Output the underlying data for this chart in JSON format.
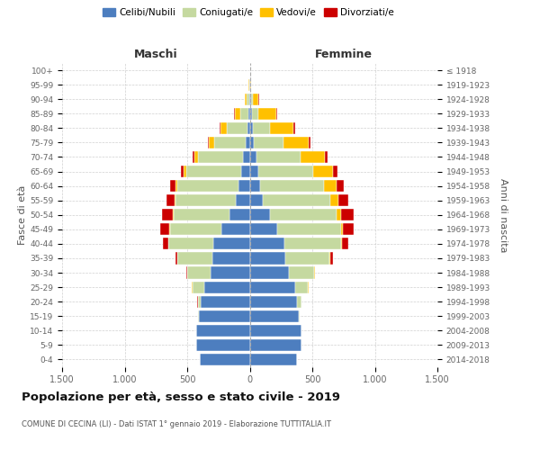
{
  "age_groups": [
    "100+",
    "95-99",
    "90-94",
    "85-89",
    "80-84",
    "75-79",
    "70-74",
    "65-69",
    "60-64",
    "55-59",
    "50-54",
    "45-49",
    "40-44",
    "35-39",
    "30-34",
    "25-29",
    "20-24",
    "15-19",
    "10-14",
    "5-9",
    "0-4"
  ],
  "birth_years": [
    "≤ 1918",
    "1919-1923",
    "1924-1928",
    "1929-1933",
    "1934-1938",
    "1939-1943",
    "1944-1948",
    "1949-1953",
    "1954-1958",
    "1959-1963",
    "1964-1968",
    "1969-1973",
    "1974-1978",
    "1979-1983",
    "1984-1988",
    "1989-1993",
    "1994-1998",
    "1999-2003",
    "2004-2008",
    "2009-2013",
    "2014-2018"
  ],
  "males": {
    "celibi": [
      0,
      2,
      4,
      10,
      20,
      35,
      55,
      70,
      90,
      110,
      160,
      230,
      290,
      300,
      310,
      360,
      390,
      410,
      430,
      430,
      400
    ],
    "coniugati": [
      0,
      3,
      20,
      65,
      160,
      250,
      360,
      440,
      490,
      480,
      450,
      410,
      360,
      280,
      190,
      100,
      25,
      5,
      0,
      0,
      0
    ],
    "vedovi": [
      0,
      3,
      15,
      45,
      55,
      45,
      28,
      18,
      12,
      8,
      5,
      4,
      3,
      2,
      2,
      2,
      0,
      0,
      0,
      0,
      0
    ],
    "divorziati": [
      0,
      0,
      0,
      3,
      5,
      8,
      15,
      20,
      45,
      70,
      85,
      75,
      38,
      12,
      5,
      4,
      3,
      0,
      0,
      0,
      0
    ]
  },
  "females": {
    "nubili": [
      0,
      3,
      8,
      15,
      22,
      32,
      55,
      68,
      80,
      105,
      160,
      220,
      275,
      285,
      310,
      360,
      375,
      395,
      415,
      415,
      375
    ],
    "coniugate": [
      0,
      3,
      15,
      55,
      140,
      240,
      355,
      440,
      510,
      540,
      535,
      510,
      455,
      355,
      205,
      105,
      38,
      6,
      0,
      0,
      0
    ],
    "vedove": [
      0,
      8,
      45,
      140,
      190,
      200,
      190,
      155,
      105,
      65,
      38,
      18,
      8,
      4,
      3,
      3,
      0,
      0,
      0,
      0,
      0
    ],
    "divorziate": [
      0,
      0,
      4,
      8,
      8,
      15,
      25,
      35,
      55,
      75,
      95,
      85,
      48,
      18,
      5,
      4,
      3,
      0,
      0,
      0,
      0
    ]
  },
  "color_celibi": "#4d7ebf",
  "color_coniugati": "#c5d9a0",
  "color_vedovi": "#ffc000",
  "color_divorziati": "#cc0000",
  "xlim": 1500,
  "title": "Popolazione per età, sesso e stato civile - 2019",
  "subtitle": "COMUNE DI CECINA (LI) - Dati ISTAT 1° gennaio 2019 - Elaborazione TUTTITALIA.IT",
  "ylabel_left": "Fasce di età",
  "ylabel_right": "Anni di nascita",
  "xlabel_left": "Maschi",
  "xlabel_right": "Femmine"
}
